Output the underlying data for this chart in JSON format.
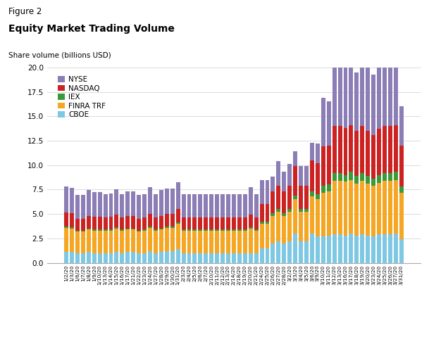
{
  "title_line1": "Figure 2",
  "title_line2": "Equity Market Trading Volume",
  "ylabel": "Share volume (billions USD)",
  "ylim": [
    0,
    20.0
  ],
  "yticks": [
    0,
    2.5,
    5.0,
    7.5,
    10.0,
    12.5,
    15.0,
    17.5,
    20.0
  ],
  "colors": {
    "NYSE": "#8B7DB5",
    "NASDAQ": "#CC2222",
    "IEX": "#3A9A3A",
    "FINRA TRF": "#F5A623",
    "CBOE": "#7EC8E3"
  },
  "dates": [
    "1/2/20",
    "1/3/20",
    "1/6/20",
    "1/7/20",
    "1/8/20",
    "1/9/20",
    "1/10/20",
    "1/13/20",
    "1/14/20",
    "1/15/20",
    "1/16/20",
    "1/17/20",
    "1/21/20",
    "1/22/20",
    "1/23/20",
    "1/24/20",
    "1/27/20",
    "1/28/20",
    "1/29/20",
    "1/30/20",
    "1/31/20",
    "2/3/20",
    "2/4/20",
    "2/5/20",
    "2/6/20",
    "2/7/20",
    "2/10/20",
    "2/11/20",
    "2/12/20",
    "2/13/20",
    "2/14/20",
    "2/18/20",
    "2/19/20",
    "2/20/20",
    "2/21/20",
    "2/24/20",
    "2/25/20",
    "2/26/20",
    "2/27/20",
    "2/28/20",
    "3/2/20",
    "3/3/20",
    "3/4/20",
    "3/5/20",
    "3/6/20",
    "3/9/20",
    "3/10/20",
    "3/11/20",
    "3/12/20",
    "3/13/20",
    "3/16/20",
    "3/17/20",
    "3/18/20",
    "3/19/20",
    "3/20/20",
    "3/23/20",
    "3/24/20",
    "3/25/20",
    "3/26/20",
    "3/27/20",
    "3/31/20"
  ],
  "CBOE": [
    1.1,
    1.1,
    1.0,
    1.0,
    1.1,
    1.0,
    1.0,
    1.0,
    1.0,
    1.1,
    1.0,
    1.1,
    1.1,
    1.0,
    1.0,
    1.2,
    1.0,
    1.1,
    1.2,
    1.2,
    1.4,
    1.0,
    1.0,
    1.0,
    1.0,
    1.0,
    1.0,
    1.0,
    1.0,
    1.0,
    1.0,
    1.0,
    1.0,
    1.0,
    1.0,
    1.5,
    1.5,
    2.0,
    2.2,
    2.0,
    2.2,
    3.0,
    2.2,
    2.2,
    3.0,
    2.7,
    2.7,
    2.8,
    2.9,
    2.9,
    2.8,
    3.0,
    2.8,
    2.9,
    2.8,
    2.7,
    2.9,
    2.9,
    2.9,
    3.0,
    2.4
  ],
  "FINRA_TRF": [
    2.5,
    2.4,
    2.2,
    2.2,
    2.3,
    2.3,
    2.3,
    2.3,
    2.3,
    2.4,
    2.3,
    2.3,
    2.3,
    2.2,
    2.3,
    2.4,
    2.3,
    2.3,
    2.4,
    2.4,
    2.6,
    2.3,
    2.3,
    2.3,
    2.3,
    2.3,
    2.3,
    2.3,
    2.3,
    2.3,
    2.3,
    2.3,
    2.3,
    2.5,
    2.3,
    2.5,
    2.5,
    2.8,
    3.0,
    2.8,
    3.0,
    3.5,
    3.0,
    3.0,
    3.8,
    3.8,
    4.5,
    4.5,
    5.5,
    5.5,
    5.5,
    5.5,
    5.3,
    5.5,
    5.3,
    5.2,
    5.3,
    5.5,
    5.5,
    5.5,
    4.8
  ],
  "IEX": [
    0.15,
    0.15,
    0.12,
    0.12,
    0.13,
    0.13,
    0.13,
    0.12,
    0.12,
    0.13,
    0.12,
    0.13,
    0.13,
    0.12,
    0.12,
    0.13,
    0.12,
    0.13,
    0.13,
    0.13,
    0.15,
    0.12,
    0.12,
    0.12,
    0.12,
    0.12,
    0.12,
    0.12,
    0.12,
    0.12,
    0.12,
    0.12,
    0.12,
    0.13,
    0.12,
    0.2,
    0.2,
    0.3,
    0.3,
    0.3,
    0.3,
    0.4,
    0.3,
    0.3,
    0.5,
    0.5,
    0.7,
    0.7,
    0.8,
    0.8,
    0.7,
    0.8,
    0.8,
    0.8,
    0.8,
    0.7,
    0.8,
    0.8,
    0.8,
    0.8,
    0.6
  ],
  "NASDAQ": [
    1.4,
    1.4,
    1.2,
    1.2,
    1.3,
    1.3,
    1.3,
    1.2,
    1.3,
    1.3,
    1.2,
    1.3,
    1.3,
    1.2,
    1.2,
    1.3,
    1.2,
    1.3,
    1.3,
    1.3,
    1.4,
    1.2,
    1.2,
    1.2,
    1.2,
    1.2,
    1.2,
    1.2,
    1.2,
    1.2,
    1.2,
    1.2,
    1.2,
    1.3,
    1.2,
    1.8,
    1.8,
    2.2,
    2.4,
    2.2,
    2.4,
    3.0,
    2.4,
    2.4,
    3.2,
    3.2,
    4.0,
    4.0,
    4.8,
    4.8,
    4.8,
    4.8,
    4.6,
    4.8,
    4.6,
    4.5,
    4.7,
    4.8,
    4.8,
    4.8,
    4.2
  ],
  "NYSE": [
    2.7,
    2.6,
    2.4,
    2.4,
    2.6,
    2.5,
    2.5,
    2.4,
    2.4,
    2.6,
    2.4,
    2.5,
    2.5,
    2.4,
    2.4,
    2.7,
    2.4,
    2.6,
    2.6,
    2.6,
    2.7,
    2.4,
    2.4,
    2.4,
    2.4,
    2.4,
    2.4,
    2.4,
    2.4,
    2.4,
    2.4,
    2.4,
    2.4,
    2.8,
    2.4,
    2.5,
    2.5,
    1.5,
    2.5,
    2.0,
    2.2,
    1.5,
    2.0,
    2.0,
    1.8,
    2.0,
    5.0,
    4.5,
    8.0,
    7.5,
    8.5,
    7.0,
    6.0,
    7.2,
    6.5,
    6.2,
    6.5,
    6.5,
    7.0,
    6.7,
    4.0
  ]
}
